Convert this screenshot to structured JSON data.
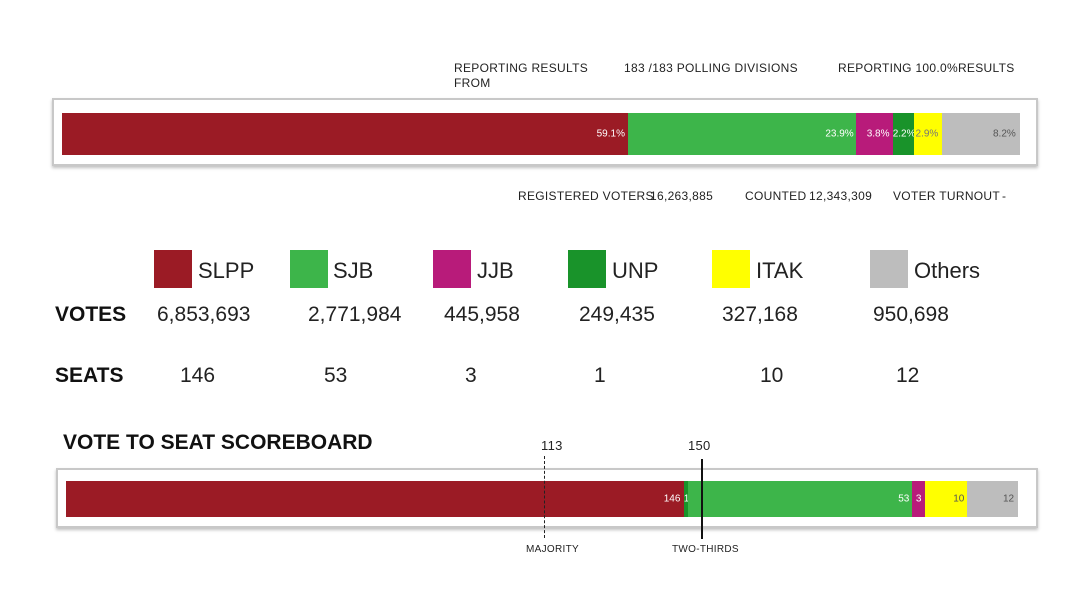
{
  "reporting": {
    "label_from": "REPORTING RESULTS FROM",
    "divisions": "183 /183 POLLING DIVISIONS",
    "reporting_pct": "REPORTING 100.0%RESULTS"
  },
  "stats": {
    "registered_label": "REGISTERED VOTERS",
    "registered_value": "16,263,885",
    "counted_label": "COUNTED",
    "counted_value": "12,343,309",
    "turnout_label": "VOTER TURNOUT",
    "turnout_value": "-"
  },
  "row_labels": {
    "votes": "VOTES",
    "seats": "SEATS"
  },
  "scoreboard": {
    "title": "VOTE TO SEAT SCOREBOARD",
    "majority_value": "113",
    "majority_label": "MAJORITY",
    "twothirds_value": "150",
    "twothirds_label": "TWO-THIRDS"
  },
  "colors": {
    "SLPP": "#9b1b25",
    "SJB": "#3db54a",
    "JJB": "#b81b7a",
    "UNP": "#19932a",
    "ITAK": "#ffff00",
    "Others": "#bdbdbd"
  },
  "chart_data": [
    {
      "type": "bar",
      "orientation": "horizontal-stacked",
      "categories": [
        "SLPP",
        "SJB",
        "JJB",
        "UNP",
        "ITAK",
        "Others"
      ],
      "values": [
        59.1,
        23.9,
        3.8,
        2.2,
        2.9,
        8.2
      ],
      "labels": [
        "59.1%",
        "23.9%",
        "3.8%",
        "2.2%",
        "2.9%",
        "8.2%"
      ],
      "unit": "%"
    },
    {
      "type": "bar",
      "orientation": "horizontal-stacked",
      "categories": [
        "SLPP",
        "UNP",
        "SJB",
        "JJB",
        "ITAK",
        "Others"
      ],
      "values": [
        146,
        1,
        53,
        3,
        10,
        12
      ],
      "labels": [
        "146",
        "1",
        "53",
        "3",
        "10",
        "12"
      ],
      "total": 225,
      "reference_lines": [
        113,
        150
      ]
    }
  ],
  "parties": [
    {
      "name": "SLPP",
      "votes": "6,853,693",
      "seats": "146"
    },
    {
      "name": "SJB",
      "votes": "2,771,984",
      "seats": "53"
    },
    {
      "name": "JJB",
      "votes": "445,958",
      "seats": "3"
    },
    {
      "name": "UNP",
      "votes": "249,435",
      "seats": "1"
    },
    {
      "name": "ITAK",
      "votes": "327,168",
      "seats": "10"
    },
    {
      "name": "Others",
      "votes": "950,698",
      "seats": "12"
    }
  ]
}
